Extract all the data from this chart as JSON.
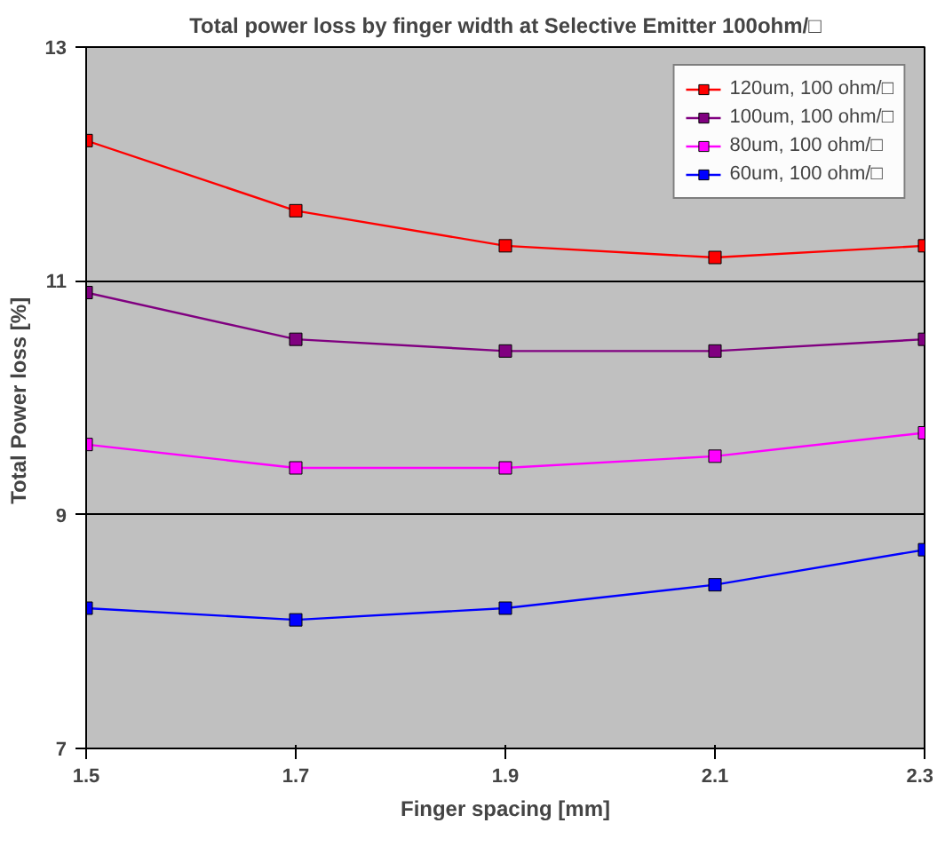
{
  "chart_data": {
    "type": "line",
    "title": "Total power loss by finger width at Selective Emitter 100ohm/□",
    "xlabel": "Finger spacing [mm]",
    "ylabel": "Total Power  loss [%]",
    "x": [
      1.5,
      1.7,
      1.9,
      2.1,
      2.3
    ],
    "series": [
      {
        "name": "120um, 100 ohm/□",
        "color": "#ff0000",
        "values": [
          12.2,
          11.6,
          11.3,
          11.2,
          11.3
        ]
      },
      {
        "name": "100um, 100 ohm/□",
        "color": "#800080",
        "values": [
          10.9,
          10.5,
          10.4,
          10.4,
          10.5
        ]
      },
      {
        "name": "80um, 100 ohm/□",
        "color": "#ff00ff",
        "values": [
          9.6,
          9.4,
          9.4,
          9.5,
          9.7
        ]
      },
      {
        "name": "60um, 100 ohm/□",
        "color": "#0000ff",
        "values": [
          8.2,
          8.1,
          8.2,
          8.4,
          8.7
        ]
      }
    ],
    "xlim": [
      1.5,
      2.3
    ],
    "xticks": [
      1.5,
      1.7,
      1.9,
      2.1,
      2.3
    ],
    "ylim": [
      7,
      13
    ],
    "yticks": [
      7,
      9,
      11,
      13
    ],
    "grid": "y",
    "legend": "top right",
    "marker": "square",
    "line_style": "solid"
  }
}
